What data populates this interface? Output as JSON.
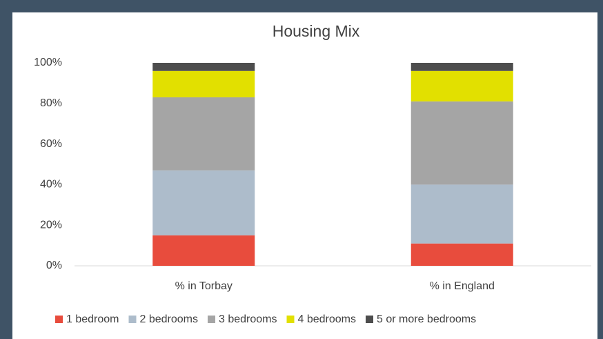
{
  "chart_data": {
    "type": "stacked_bar",
    "title": "Housing Mix",
    "categories": [
      "% in Torbay",
      "% in England"
    ],
    "series": [
      {
        "name": "1 bedroom",
        "color": "#e84c3d",
        "values": [
          15,
          11
        ]
      },
      {
        "name": "2 bedrooms",
        "color": "#adbccb",
        "values": [
          32,
          29
        ]
      },
      {
        "name": "3 bedrooms",
        "color": "#a5a5a5",
        "values": [
          36,
          41
        ]
      },
      {
        "name": "4 bedrooms",
        "color": "#e2e000",
        "values": [
          13,
          15
        ]
      },
      {
        "name": "5 or more bedrooms",
        "color": "#4d4d4d",
        "values": [
          4,
          4
        ]
      }
    ],
    "ylim": [
      0,
      100
    ],
    "yticks": [
      {
        "value": 0,
        "label": "0%"
      },
      {
        "value": 20,
        "label": "20%"
      },
      {
        "value": 40,
        "label": "40%"
      },
      {
        "value": 60,
        "label": "60%"
      },
      {
        "value": 80,
        "label": "80%"
      },
      {
        "value": 100,
        "label": "100%"
      }
    ],
    "grid": false,
    "legend": "bottom"
  }
}
